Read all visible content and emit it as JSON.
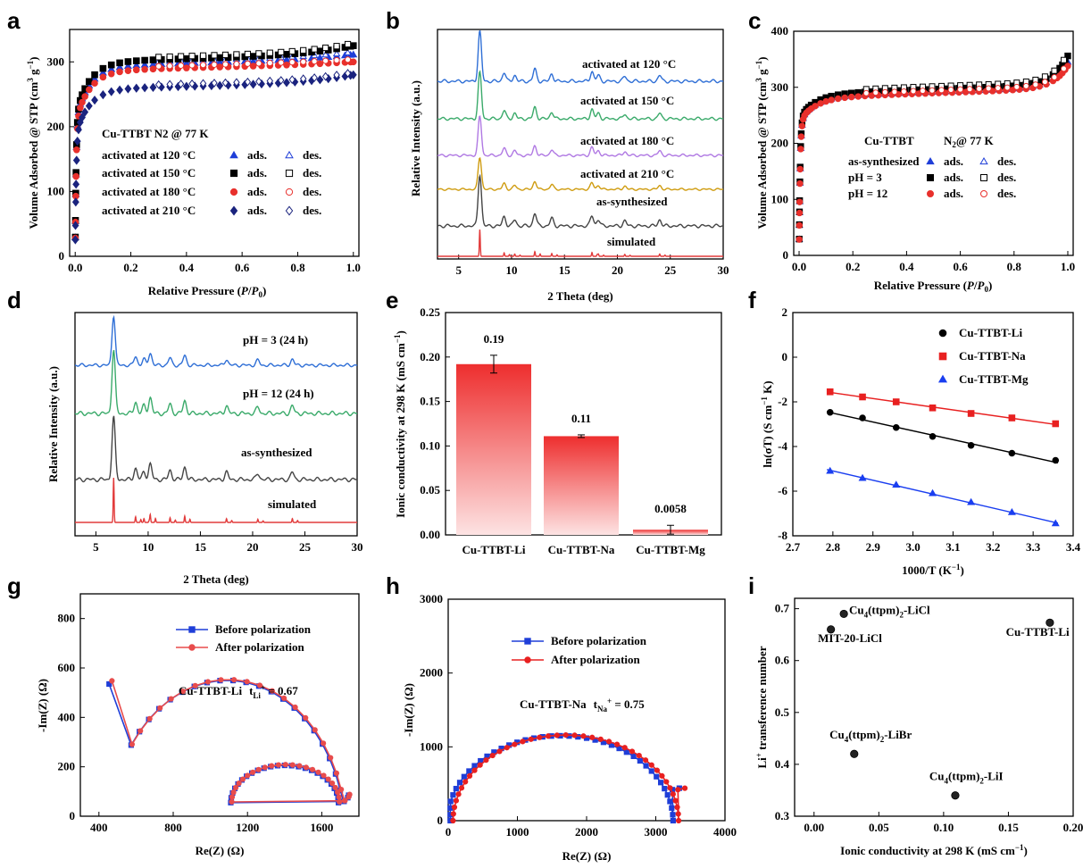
{
  "panel_labels": [
    "a",
    "b",
    "c",
    "d",
    "e",
    "f",
    "g",
    "h",
    "i"
  ],
  "chart_data": [
    {
      "type": "scatter",
      "panel": "a",
      "title": "Cu-TTBT N2 @ 77 K",
      "xlabel": "Relative Pressure (P/P0)",
      "ylabel": "Volume Adsorbed @ STP (cm3 g-1)",
      "xlim": [
        -0.02,
        1.02
      ],
      "ylim": [
        0,
        350
      ],
      "xticks": [
        "0.0",
        "0.2",
        "0.4",
        "0.6",
        "0.8",
        "1.0"
      ],
      "yticks": [
        "0",
        "100",
        "200",
        "300"
      ],
      "legend": {
        "title": "Cu-TTBT N2 @ 77 K",
        "ads": "ads.",
        "des": "des."
      },
      "series": [
        {
          "name": "activated at 120 °C",
          "color": "#1f3ed8",
          "marker": "triangle",
          "plateau": 293,
          "end": 311
        },
        {
          "name": "activated at 150 °C",
          "color": "#000000",
          "marker": "square",
          "plateau": 300,
          "end": 325
        },
        {
          "name": "activated at 180 °C",
          "color": "#e8302c",
          "marker": "circle",
          "plateau": 286,
          "end": 300
        },
        {
          "name": "activated at 210 °C",
          "color": "#1a237e",
          "marker": "diamond",
          "plateau": 258,
          "end": 280
        }
      ]
    },
    {
      "type": "line",
      "panel": "b",
      "xlabel": "2 Theta (deg)",
      "ylabel": "Relative Intensity (a.u.)",
      "xlim": [
        3,
        30
      ],
      "xticks": [
        "5",
        "10",
        "15",
        "20",
        "25",
        "30"
      ],
      "peaks": [
        7.0,
        9.3,
        10.3,
        12.2,
        13.8,
        17.6,
        18.2,
        20.7,
        24.0
      ],
      "series": [
        {
          "name": "activated at 120 °C",
          "color": "#2f6fd6"
        },
        {
          "name": "activated at 150 °C",
          "color": "#3aaa6a"
        },
        {
          "name": "activated at 180 °C",
          "color": "#b079e3"
        },
        {
          "name": "activated at 210 °C",
          "color": "#cf9c10"
        },
        {
          "name": "as-synthesized",
          "color": "#444444"
        },
        {
          "name": "simulated",
          "color": "#e23b3b"
        }
      ]
    },
    {
      "type": "scatter",
      "panel": "c",
      "xlabel": "Relative Pressure (P/P0)",
      "ylabel": "Volume Adsorbed @ STP (cm3 g-1)",
      "xlim": [
        -0.02,
        1.02
      ],
      "ylim": [
        0,
        400
      ],
      "xticks": [
        "0.0",
        "0.2",
        "0.4",
        "0.6",
        "0.8",
        "1.0"
      ],
      "yticks": [
        "0",
        "100",
        "200",
        "300",
        "400"
      ],
      "legend": {
        "title1": "Cu-TTBT",
        "title2": "N2@ 77 K",
        "ads": "ads.",
        "des": "des."
      },
      "series": [
        {
          "name": "as-synthesized",
          "color": "#1f3ed8",
          "marker": "triangle",
          "plateau": 283,
          "end": 345
        },
        {
          "name": "pH = 3",
          "color": "#000000",
          "marker": "square",
          "plateau": 288,
          "end": 356
        },
        {
          "name": "pH = 12",
          "color": "#e8302c",
          "marker": "circle",
          "plateau": 281,
          "end": 338
        }
      ]
    },
    {
      "type": "line",
      "panel": "d",
      "xlabel": "2 Theta (deg)",
      "ylabel": "Relative Intensity (a.u.)",
      "xlim": [
        3,
        30
      ],
      "xticks": [
        "5",
        "10",
        "15",
        "20",
        "25",
        "30"
      ],
      "peaks": [
        6.7,
        8.8,
        9.6,
        10.2,
        12.1,
        13.5,
        17.5,
        20.5,
        23.8
      ],
      "series": [
        {
          "name": "pH = 3 (24 h)",
          "color": "#2f6fd6"
        },
        {
          "name": "pH = 12 (24 h)",
          "color": "#3aaa6a"
        },
        {
          "name": "as-synthesized",
          "color": "#444444"
        },
        {
          "name": "simulated",
          "color": "#e23b3b"
        }
      ]
    },
    {
      "type": "bar",
      "panel": "e",
      "ylabel": "Ionic conductivity at 298 K (mS cm-1)",
      "ylim": [
        0,
        0.25
      ],
      "yticks": [
        "0.00",
        "0.05",
        "0.10",
        "0.15",
        "0.20",
        "0.25"
      ],
      "categories": [
        "Cu-TTBT-Li",
        "Cu-TTBT-Na",
        "Cu-TTBT-Mg"
      ],
      "values": [
        0.192,
        0.111,
        0.0058
      ],
      "errors": [
        0.01,
        0.0015,
        0.005
      ],
      "labels": [
        "0.19",
        "0.11",
        "0.0058"
      ],
      "color": "#f03a3a"
    },
    {
      "type": "scatter",
      "panel": "f",
      "xlabel": "1000/T (K-1)",
      "ylabel": "ln(σT) (S cm-1 K)",
      "xlim": [
        2.7,
        3.4
      ],
      "ylim": [
        -8,
        2
      ],
      "xticks": [
        "2.7",
        "2.8",
        "2.9",
        "3.0",
        "3.1",
        "3.2",
        "3.3",
        "3.4"
      ],
      "yticks": [
        "2",
        "0",
        "-2",
        "-4",
        "-6",
        "-8"
      ],
      "x": [
        2.793,
        2.874,
        2.958,
        3.049,
        3.145,
        3.247,
        3.356
      ],
      "series": [
        {
          "name": "Cu-TTBT-Li",
          "color": "#000000",
          "marker": "circle",
          "values": [
            -2.47,
            -2.72,
            -3.15,
            -3.55,
            -3.95,
            -4.3,
            -4.62
          ]
        },
        {
          "name": "Cu-TTBT-Na",
          "color": "#e82020",
          "marker": "square",
          "values": [
            -1.55,
            -1.78,
            -2.0,
            -2.27,
            -2.52,
            -2.72,
            -2.98
          ]
        },
        {
          "name": "Cu-TTBT-Mg",
          "color": "#1a3ef0",
          "marker": "triangle",
          "values": [
            -5.1,
            -5.42,
            -5.72,
            -6.1,
            -6.5,
            -6.95,
            -7.45
          ]
        }
      ]
    },
    {
      "type": "line",
      "panel": "g",
      "xlabel": "Re(Z) (Ω)",
      "ylabel": "-Im(Z) (Ω)",
      "xlim": [
        300,
        1800
      ],
      "ylim": [
        0,
        900
      ],
      "xticks": [
        "400",
        "800",
        "1200",
        "1600"
      ],
      "yticks": [
        "0",
        "200",
        "400",
        "600",
        "800"
      ],
      "annotation": {
        "text": "Cu-TTBT-Li",
        "t": "t",
        "sub": "Li",
        "sup": "+",
        "value": " = 0.67"
      },
      "series": [
        {
          "name": "Before polarization",
          "color": "#1f3ed8",
          "marker": "square"
        },
        {
          "name": "After polarization",
          "color": "#e84c4c",
          "marker": "circle"
        }
      ]
    },
    {
      "type": "line",
      "panel": "h",
      "xlabel": "Re(Z) (Ω)",
      "ylabel": "-Im(Z) (Ω)",
      "xlim": [
        0,
        4000
      ],
      "ylim": [
        0,
        3000
      ],
      "xticks": [
        "0",
        "1000",
        "2000",
        "3000",
        "4000"
      ],
      "yticks": [
        "0",
        "1000",
        "2000",
        "3000"
      ],
      "annotation": {
        "text": "Cu-TTBT-Na",
        "t": "t",
        "sub": "Na",
        "sup": "+",
        "value": " = 0.75"
      },
      "series": [
        {
          "name": "Before polarization",
          "color": "#1f3ed8",
          "marker": "square"
        },
        {
          "name": "After polarization",
          "color": "#e82020",
          "marker": "circle"
        }
      ]
    },
    {
      "type": "scatter",
      "panel": "i",
      "xlabel": "Ionic conductivity at 298 K (mS cm-1)",
      "ylabel": "Li+ transference number",
      "xlim": [
        -0.015,
        0.2
      ],
      "ylim": [
        0.3,
        0.72
      ],
      "xticks": [
        "0.00",
        "0.05",
        "0.10",
        "0.15",
        "0.20"
      ],
      "yticks": [
        "0.3",
        "0.4",
        "0.5",
        "0.6",
        "0.7"
      ],
      "points": [
        {
          "label": "Cu4(ttpm)2-LiCl",
          "x": 0.023,
          "y": 0.69,
          "lx": 0.027,
          "ly": 0.69,
          "anchor": "start"
        },
        {
          "label": "MIT-20-LiCl",
          "x": 0.013,
          "y": 0.66,
          "lx": 0.003,
          "ly": 0.636,
          "anchor": "start"
        },
        {
          "label": "Cu-TTBT-Li",
          "x": 0.182,
          "y": 0.673,
          "lx": 0.197,
          "ly": 0.648,
          "anchor": "end"
        },
        {
          "label": "Cu4(ttpm)2-LiBr",
          "x": 0.031,
          "y": 0.42,
          "lx": 0.012,
          "ly": 0.45,
          "anchor": "start"
        },
        {
          "label": "Cu4(ttpm)2-LiI",
          "x": 0.109,
          "y": 0.34,
          "lx": 0.089,
          "ly": 0.37,
          "anchor": "start"
        }
      ]
    }
  ]
}
